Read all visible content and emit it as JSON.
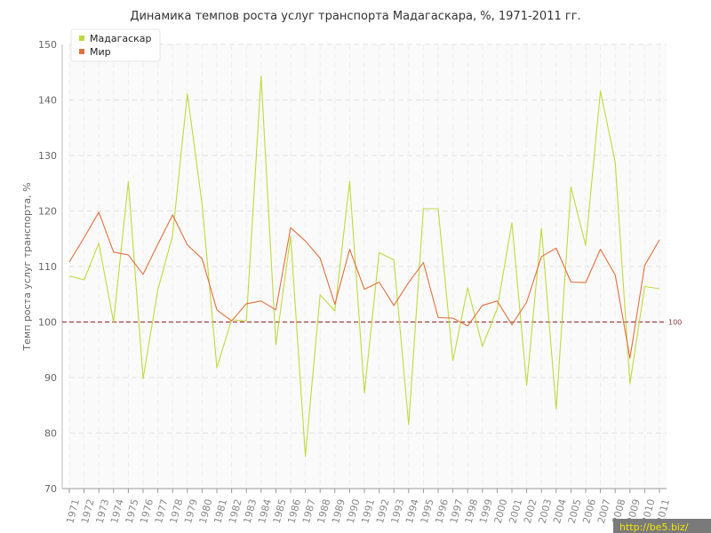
{
  "chart_data": {
    "type": "line",
    "title": "Динамика темпов роста услуг транспорта Мадагаскара, %, 1971-2011 гг.",
    "ylabel": "Темп роста услуг транспорта, %",
    "xlabel": "",
    "ylim": [
      70,
      150
    ],
    "yticks": [
      70,
      80,
      90,
      100,
      110,
      120,
      130,
      140,
      150
    ],
    "grid": true,
    "legend_position": "top-left",
    "x": [
      "1971",
      "1972",
      "1973",
      "1974",
      "1975",
      "1976",
      "1977",
      "1978",
      "1979",
      "1980",
      "1981",
      "1982",
      "1983",
      "1984",
      "1985",
      "1986",
      "1987",
      "1988",
      "1989",
      "1990",
      "1991",
      "1992",
      "1993",
      "1994",
      "1995",
      "1996",
      "1997",
      "1998",
      "1999",
      "2000",
      "2001",
      "2002",
      "2003",
      "2004",
      "2005",
      "2006",
      "2007",
      "2008",
      "2009",
      "2010",
      "2011"
    ],
    "series": [
      {
        "name": "Мадагаскар",
        "color": "#c0d940",
        "values": [
          108.3,
          107.6,
          114.2,
          100.0,
          125.3,
          89.8,
          105.8,
          115.6,
          141.1,
          121.2,
          91.8,
          100.4,
          100.2,
          144.3,
          95.9,
          115.5,
          75.8,
          104.9,
          102.0,
          125.3,
          87.2,
          112.5,
          111.2,
          81.5,
          120.4,
          120.4,
          93.0,
          106.2,
          95.6,
          102.4,
          117.9,
          88.6,
          116.9,
          84.3,
          124.3,
          113.8,
          141.6,
          128.8,
          88.9,
          106.4,
          106.0
        ]
      },
      {
        "name": "Мир",
        "color": "#e07040",
        "values": [
          110.8,
          115.2,
          119.8,
          112.6,
          112.1,
          108.6,
          114.0,
          119.3,
          113.9,
          111.4,
          102.2,
          100.2,
          103.3,
          103.8,
          102.2,
          117.0,
          114.6,
          111.5,
          103.2,
          113.1,
          105.9,
          107.2,
          103.0,
          107.1,
          110.7,
          100.8,
          100.7,
          99.3,
          103.0,
          103.8,
          99.5,
          103.6,
          111.8,
          113.3,
          107.2,
          107.1,
          113.1,
          108.5,
          93.5,
          110.2,
          114.8
        ]
      }
    ],
    "reference_line": {
      "value": 100,
      "label": "100",
      "color": "#a04040"
    }
  },
  "watermark": {
    "text": "http://be5.biz/"
  }
}
